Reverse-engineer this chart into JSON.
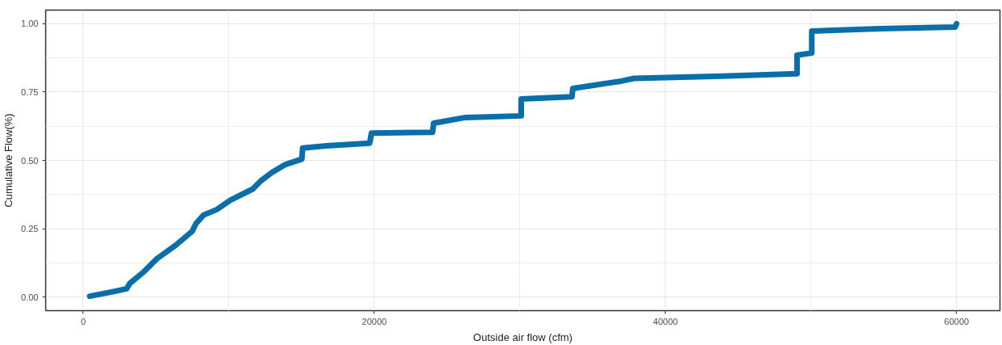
{
  "chart_data": {
    "type": "line",
    "xlabel": "Outside air flow (cfm)",
    "ylabel": "Cumulative Flow(%)",
    "xlim": [
      -2580,
      62980
    ],
    "ylim": [
      -0.05,
      1.05
    ],
    "xticks": [
      0,
      {
        "value": 10000,
        "label": null
      },
      20000,
      {
        "value": 30000,
        "label": null
      },
      40000,
      {
        "value": 50000,
        "label": null
      },
      60000
    ],
    "yticks": [
      {
        "value": 0,
        "label": "0.00"
      },
      {
        "value": 0.125,
        "label": null
      },
      {
        "value": 0.25,
        "label": "0.25"
      },
      {
        "value": 0.375,
        "label": null
      },
      {
        "value": 0.5,
        "label": "0.50"
      },
      {
        "value": 0.625,
        "label": null
      },
      {
        "value": 0.75,
        "label": "0.75"
      },
      {
        "value": 0.875,
        "label": null
      },
      {
        "value": 1,
        "label": "1.00"
      }
    ],
    "grid": true,
    "marker": "none",
    "line_style": "solid",
    "series": [
      {
        "color": "#0a6ea8",
        "x": [
          450,
          2080,
          2980,
          3200,
          4110,
          5060,
          6360,
          7480,
          7760,
          8270,
          9170,
          10120,
          11640,
          12200,
          12940,
          13890,
          15020,
          15070,
          16700,
          19680,
          19800,
          24000,
          24070,
          26260,
          30090,
          30090,
          33580,
          33630,
          36950,
          37850,
          43870,
          49040,
          49040,
          50050,
          50050,
          54720,
          59900,
          60000
        ],
        "values": [
          0.003,
          0.02,
          0.03,
          0.05,
          0.09,
          0.14,
          0.19,
          0.24,
          0.27,
          0.3,
          0.32,
          0.355,
          0.395,
          0.425,
          0.455,
          0.485,
          0.505,
          0.545,
          0.553,
          0.563,
          0.6,
          0.603,
          0.636,
          0.657,
          0.663,
          0.725,
          0.733,
          0.763,
          0.79,
          0.8,
          0.808,
          0.817,
          0.885,
          0.893,
          0.973,
          0.982,
          0.988,
          1.0
        ]
      }
    ]
  }
}
